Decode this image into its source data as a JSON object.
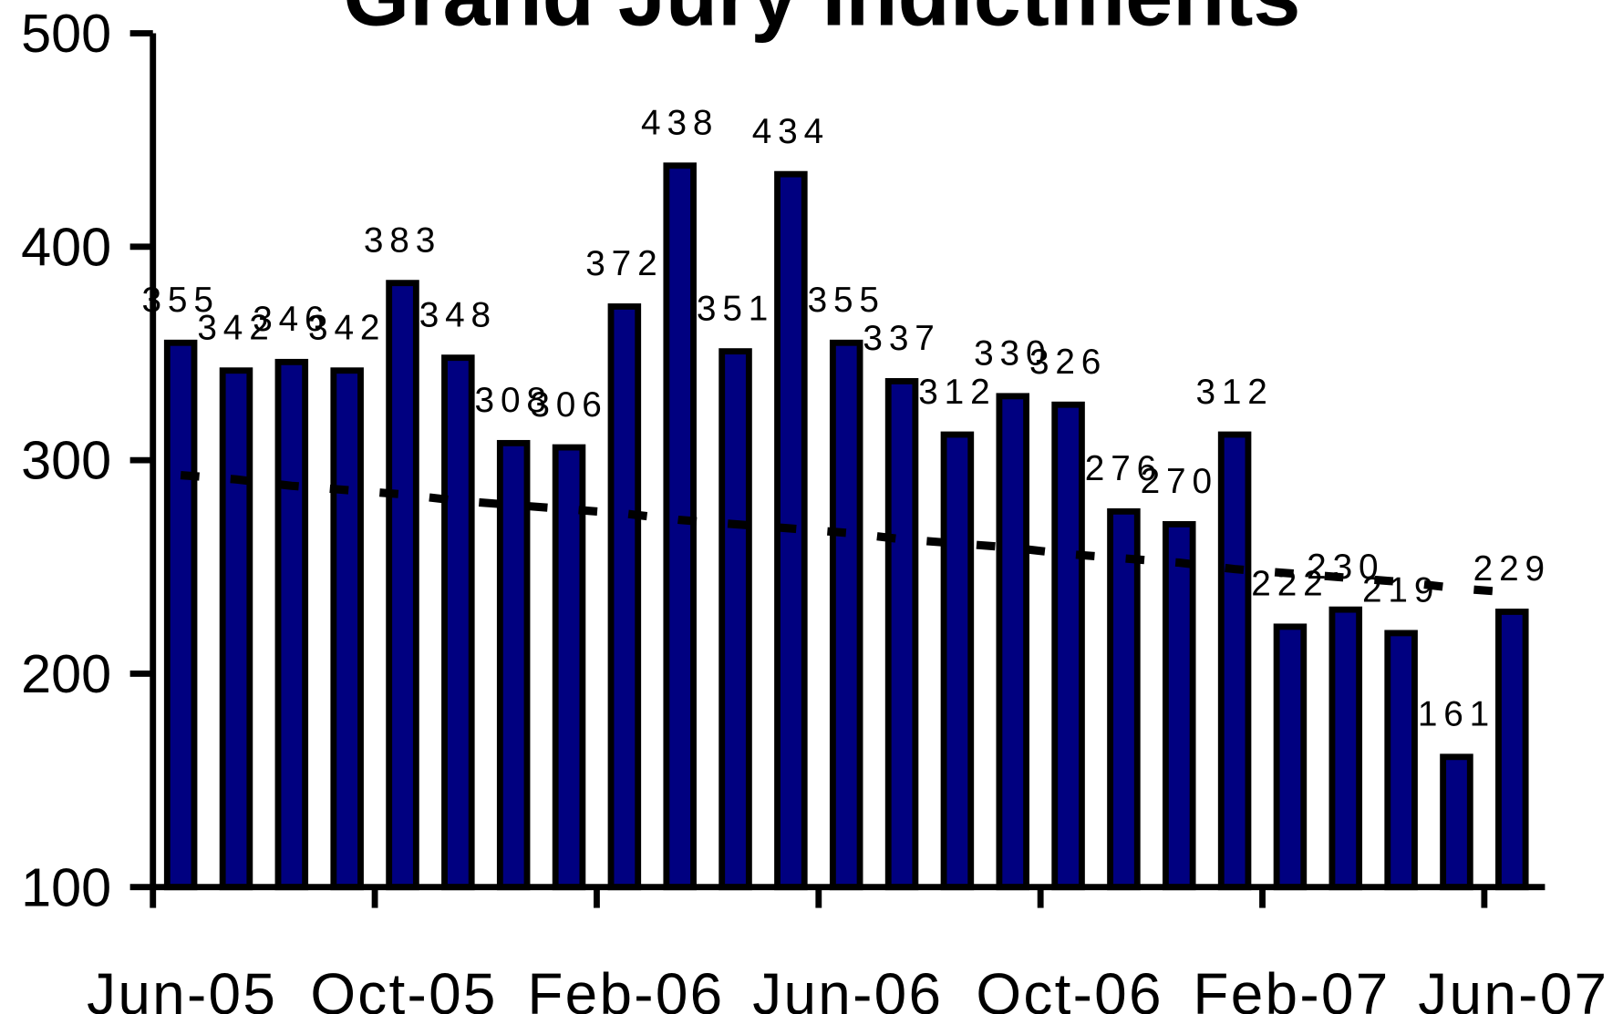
{
  "chart_data": {
    "type": "bar",
    "title": "Grand Jury Indictments",
    "categories": [
      "Jun-05",
      null,
      null,
      null,
      "Oct-05",
      null,
      null,
      null,
      "Feb-06",
      null,
      null,
      null,
      "Jun-06",
      null,
      null,
      null,
      "Oct-06",
      null,
      null,
      null,
      "Feb-07",
      null,
      null,
      null,
      "Jun-07"
    ],
    "values": [
      355,
      342,
      346,
      342,
      383,
      348,
      308,
      306,
      372,
      438,
      351,
      434,
      355,
      337,
      312,
      330,
      326,
      276,
      270,
      312,
      222,
      230,
      219,
      161,
      229
    ],
    "color": "#000080",
    "trend": [
      293,
      291,
      288,
      286,
      284,
      281,
      279,
      277,
      275,
      272,
      270,
      268,
      266,
      263,
      261,
      259,
      256,
      254,
      252,
      249,
      247,
      245,
      243,
      240,
      238
    ],
    "ylim": [
      100,
      500
    ],
    "yticks": [
      100,
      200,
      300,
      400,
      500
    ],
    "grid": false
  }
}
